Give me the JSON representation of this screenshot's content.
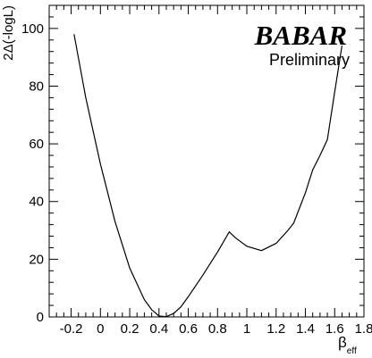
{
  "chart_data": {
    "type": "line",
    "title": "",
    "xlabel": {
      "main": "β",
      "sub": "eff"
    },
    "ylabel": "2Δ(-logL)",
    "xlim": [
      -0.35,
      1.8
    ],
    "ylim": [
      0,
      108
    ],
    "x_ticks": [
      "-0.2",
      "0",
      "0.2",
      "0.4",
      "0.6",
      "0.8",
      "1",
      "1.2",
      "1.4",
      "1.6",
      "1.8"
    ],
    "x_tick_values": [
      -0.2,
      0,
      0.2,
      0.4,
      0.6,
      0.8,
      1.0,
      1.2,
      1.4,
      1.6,
      1.8
    ],
    "y_ticks": [
      "0",
      "20",
      "40",
      "60",
      "80",
      "100"
    ],
    "y_tick_values": [
      0,
      20,
      40,
      60,
      80,
      100
    ],
    "grid": false,
    "series": [
      {
        "x": [
          -0.18,
          -0.1,
          0.0,
          0.1,
          0.2,
          0.3,
          0.35,
          0.4,
          0.45,
          0.5,
          0.55,
          0.6,
          0.7,
          0.8,
          0.88,
          0.92,
          1.0,
          1.1,
          1.2,
          1.28,
          1.32,
          1.4,
          1.45,
          1.5,
          1.55,
          1.6,
          1.65
        ],
        "y": [
          98,
          76,
          53,
          33,
          17,
          6,
          2.5,
          0.3,
          0.1,
          1.2,
          3.5,
          7,
          14.5,
          22.5,
          29.5,
          27.5,
          24.5,
          23,
          25.5,
          30,
          32.5,
          43,
          51,
          56,
          61.5,
          78,
          94
        ]
      }
    ]
  },
  "logo": {
    "name": "BABAR",
    "subtitle": "Preliminary"
  }
}
